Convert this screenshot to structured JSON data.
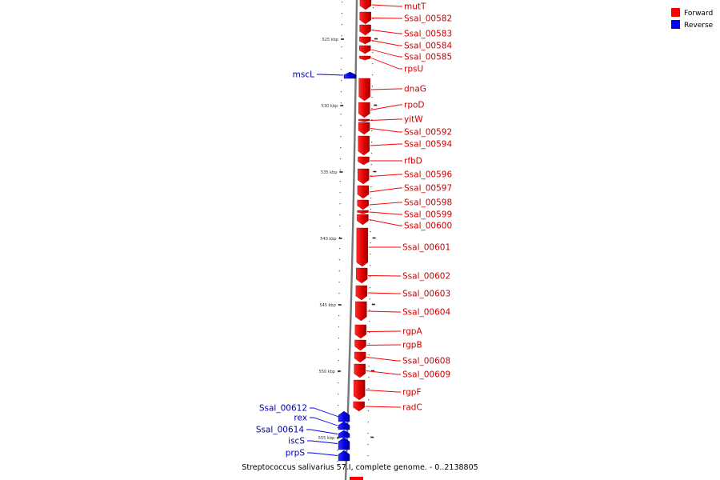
{
  "caption": "Streptococcus salivarius 57.I, complete genome. - 0..2138805",
  "legend": [
    {
      "label": "Forward",
      "color": "#ff0000"
    },
    {
      "label": "Reverse",
      "color": "#0000ff"
    }
  ],
  "ticks": [
    "525 kbp",
    "530 kbp",
    "535 kbp",
    "540 kbp",
    "545 kbp",
    "550 kbp",
    "555 kbp"
  ],
  "genes_forward": [
    "mutT",
    "Ssal_00582",
    "Ssal_00583",
    "Ssal_00584",
    "Ssal_00585",
    "rpsU",
    "dnaG",
    "rpoD",
    "yitW",
    "Ssal_00592",
    "Ssal_00594",
    "rfbD",
    "Ssal_00596",
    "Ssal_00597",
    "Ssal_00598",
    "Ssal_00599",
    "Ssal_00600",
    "Ssal_00601",
    "Ssal_00602",
    "Ssal_00603",
    "Ssal_00604",
    "rgpA",
    "rgpB",
    "Ssal_00608",
    "Ssal_00609",
    "rgpF",
    "radC"
  ],
  "genes_reverse": [
    "mscL",
    "Ssal_00612",
    "rex",
    "Ssal_00614",
    "iscS",
    "prpS"
  ],
  "colors": {
    "forward": "#ff0000",
    "forward_dark": "#b80000",
    "reverse": "#0000ff",
    "reverse_dark": "#00009a",
    "label_forward": "#cc0000",
    "label_reverse": "#0000aa",
    "backbone": "#777777"
  }
}
